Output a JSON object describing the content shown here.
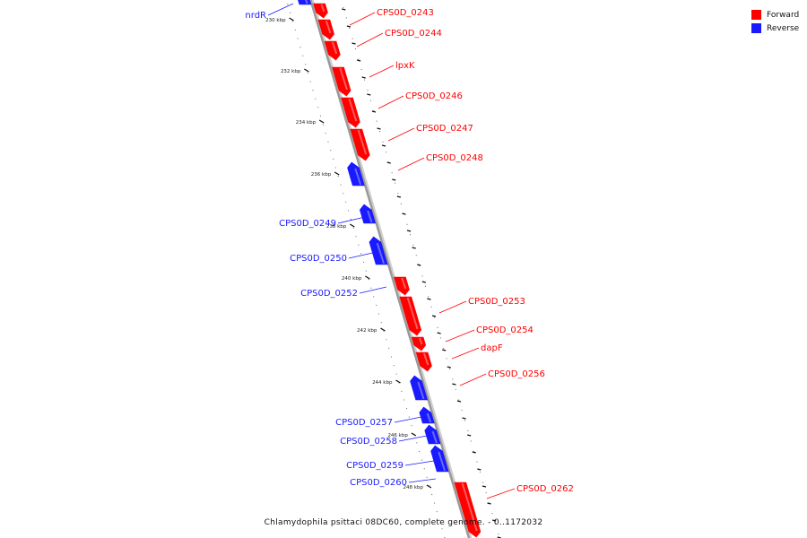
{
  "colors": {
    "forward": "#ff0000",
    "reverse": "#1a1aff",
    "backbone": "#999999"
  },
  "legend": {
    "forward": "Forward",
    "reverse": "Reverse"
  },
  "caption": "Chlamydophila psittaci 08DC60, complete genome. - 0..1172032",
  "ticks": [
    "230 kbp",
    "232 kbp",
    "234 kbp",
    "236 kbp",
    "238 kbp",
    "240 kbp",
    "242 kbp",
    "244 kbp",
    "246 kbp",
    "248 kbp"
  ],
  "features": [
    {
      "name": "nrdR",
      "strand": "reverse"
    },
    {
      "name": "CPS0D_0243",
      "strand": "forward"
    },
    {
      "name": "CPS0D_0244",
      "strand": "forward"
    },
    {
      "name": "lpxK",
      "strand": "forward"
    },
    {
      "name": "CPS0D_0246",
      "strand": "forward"
    },
    {
      "name": "CPS0D_0247",
      "strand": "forward"
    },
    {
      "name": "CPS0D_0248",
      "strand": "forward"
    },
    {
      "name": "CPS0D_0249",
      "strand": "reverse"
    },
    {
      "name": "CPS0D_0250",
      "strand": "reverse"
    },
    {
      "name": "CPS0D_0252",
      "strand": "reverse"
    },
    {
      "name": "CPS0D_0253",
      "strand": "forward"
    },
    {
      "name": "CPS0D_0254",
      "strand": "forward"
    },
    {
      "name": "dapF",
      "strand": "forward"
    },
    {
      "name": "CPS0D_0256",
      "strand": "forward"
    },
    {
      "name": "CPS0D_0257",
      "strand": "reverse"
    },
    {
      "name": "CPS0D_0258",
      "strand": "reverse"
    },
    {
      "name": "CPS0D_0259",
      "strand": "reverse"
    },
    {
      "name": "CPS0D_0260",
      "strand": "reverse"
    },
    {
      "name": "CPS0D_0262",
      "strand": "forward"
    }
  ]
}
